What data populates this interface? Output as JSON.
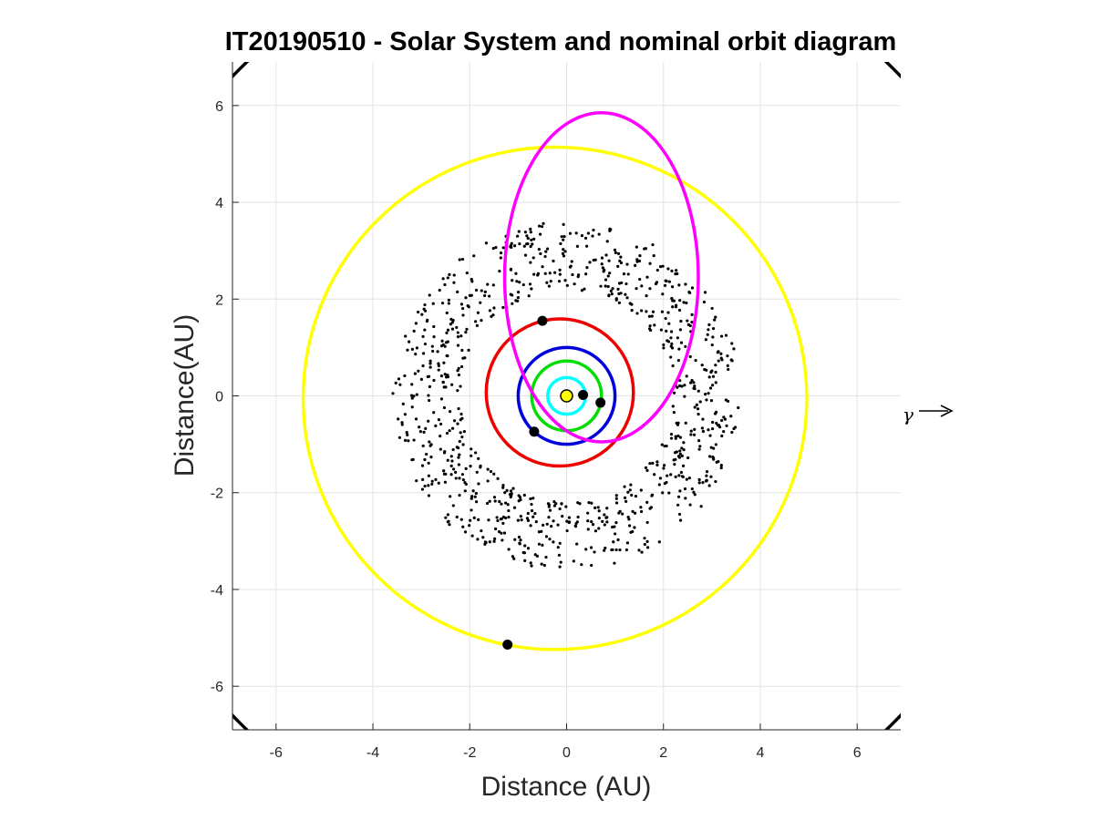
{
  "chart_data": {
    "type": "scatter",
    "title": "IT20190510 - Solar System and nominal orbit diagram",
    "xlabel": "Distance (AU)",
    "ylabel": "Distance(AU)",
    "xlim": [
      -6.9,
      6.9
    ],
    "ylim": [
      -6.9,
      6.9
    ],
    "xticks": [
      -6,
      -4,
      -2,
      0,
      2,
      4,
      6
    ],
    "yticks": [
      -6,
      -4,
      -2,
      0,
      2,
      4,
      6
    ],
    "grid": true,
    "vernal_equinox_symbol": "γ",
    "sun": {
      "x": 0,
      "y": 0,
      "color": "#ffff00"
    },
    "orbits": [
      {
        "cx": 0,
        "cy": 0,
        "rx": 0.39,
        "ry": 0.38,
        "color": "#00ffff"
      },
      {
        "cx": 0,
        "cy": 0,
        "rx": 0.72,
        "ry": 0.72,
        "color": "#00dd00"
      },
      {
        "cx": 0,
        "cy": 0,
        "rx": 1.0,
        "ry": 1.0,
        "color": "#0000dd"
      },
      {
        "cx": -0.14,
        "cy": 0.07,
        "rx": 1.52,
        "ry": 1.52,
        "color": "#ee0000"
      },
      {
        "cx": -0.24,
        "cy": -0.05,
        "rx": 5.2,
        "ry": 5.19,
        "color": "#ffff00"
      },
      {
        "cx": 0.72,
        "cy": 2.45,
        "rx": 2.0,
        "ry": 3.4,
        "color": "#ff00ff"
      },
      {
        "cx": 0.0,
        "cy": 0.0,
        "rx": 9.55,
        "ry": 9.55,
        "color": "#000000"
      }
    ],
    "planets": [
      {
        "x": 0.34,
        "y": 0.02
      },
      {
        "x": 0.7,
        "y": -0.14
      },
      {
        "x": -0.67,
        "y": -0.74
      },
      {
        "x": -0.5,
        "y": 1.55
      },
      {
        "x": -1.22,
        "y": -5.14
      }
    ],
    "asteroid_belt": {
      "r_inner": 2.2,
      "r_outer": 3.6,
      "count": 900,
      "color": "#000000"
    }
  }
}
